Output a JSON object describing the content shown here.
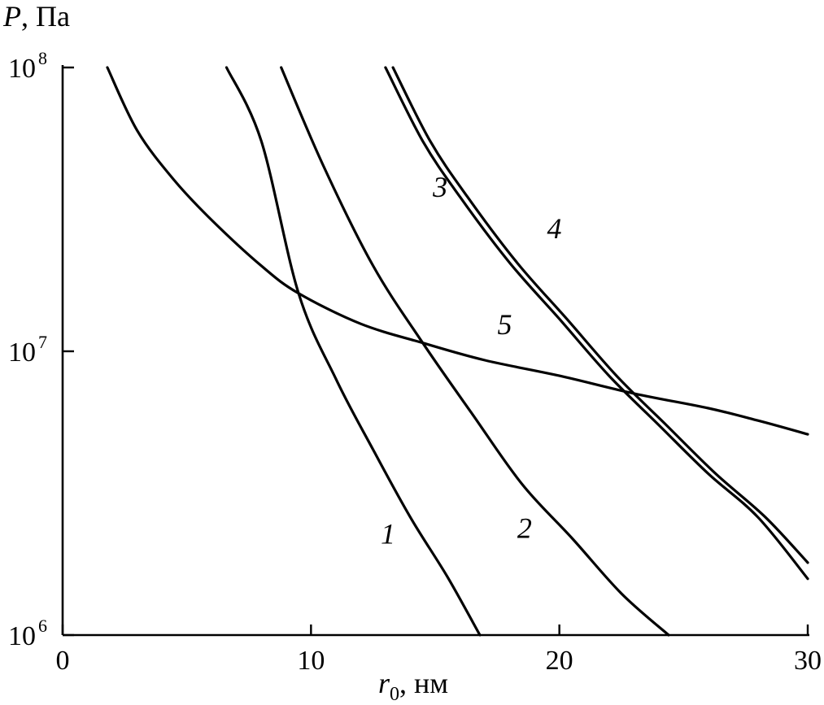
{
  "chart_data": {
    "type": "line",
    "x_axis": {
      "label_var": "r",
      "label_sub": "0",
      "label_unit": ", нм",
      "range": [
        0,
        30
      ],
      "ticks": [
        {
          "value": 0,
          "label": "0"
        },
        {
          "value": 10,
          "label": "10"
        },
        {
          "value": 20,
          "label": "20"
        },
        {
          "value": 30,
          "label": "30"
        }
      ]
    },
    "y_axis": {
      "label_var": "P",
      "label_unit": ", Па",
      "scale": "log",
      "range": [
        1000000,
        100000000
      ],
      "ticks": [
        {
          "value": 1000000,
          "base": "10",
          "exp": "6"
        },
        {
          "value": 10000000,
          "base": "10",
          "exp": "7"
        },
        {
          "value": 100000000,
          "base": "10",
          "exp": "8"
        }
      ]
    },
    "grid": false,
    "series": [
      {
        "label": "1",
        "label_at": [
          13.1,
          2100000
        ],
        "points": [
          [
            6.6,
            100000000
          ],
          [
            8,
            55000000
          ],
          [
            9.5,
            16000000
          ],
          [
            11,
            8000000
          ],
          [
            12.5,
            4500000
          ],
          [
            14,
            2600000
          ],
          [
            15.5,
            1600000
          ],
          [
            16.8,
            1000000
          ]
        ]
      },
      {
        "label": "2",
        "label_at": [
          18.6,
          2200000
        ],
        "points": [
          [
            8.8,
            100000000
          ],
          [
            10.5,
            45000000
          ],
          [
            12.5,
            20000000
          ],
          [
            14.5,
            10700000
          ],
          [
            16.5,
            6000000
          ],
          [
            18.5,
            3400000
          ],
          [
            20.5,
            2200000
          ],
          [
            22.5,
            1400000
          ],
          [
            24.4,
            1000000
          ]
        ]
      },
      {
        "label": "3",
        "label_at": [
          15.2,
          35000000
        ],
        "points": [
          [
            13.0,
            100000000
          ],
          [
            14.5,
            55000000
          ],
          [
            16,
            35000000
          ],
          [
            18,
            20500000
          ],
          [
            20,
            13000000
          ],
          [
            22,
            8200000
          ],
          [
            24,
            5500000
          ],
          [
            26,
            3700000
          ],
          [
            28,
            2600000
          ],
          [
            30,
            1580000
          ]
        ]
      },
      {
        "label": "4",
        "label_at": [
          19.8,
          25000000
        ],
        "points": [
          [
            13.3,
            100000000
          ],
          [
            14.8,
            55000000
          ],
          [
            16.3,
            35000000
          ],
          [
            18.3,
            20500000
          ],
          [
            20.3,
            13000000
          ],
          [
            22.3,
            8200000
          ],
          [
            24.3,
            5500000
          ],
          [
            26.3,
            3700000
          ],
          [
            28.3,
            2600000
          ],
          [
            30,
            1800000
          ]
        ]
      },
      {
        "label": "5",
        "label_at": [
          17.8,
          11500000
        ],
        "points": [
          [
            1.8,
            100000000
          ],
          [
            3,
            60000000
          ],
          [
            4.5,
            40000000
          ],
          [
            6,
            29000000
          ],
          [
            8,
            20000000
          ],
          [
            9.5,
            16000000
          ],
          [
            12,
            12500000
          ],
          [
            14.5,
            10700000
          ],
          [
            17,
            9300000
          ],
          [
            20,
            8200000
          ],
          [
            23,
            7100000
          ],
          [
            26,
            6300000
          ],
          [
            28,
            5700000
          ],
          [
            30,
            5100000
          ]
        ]
      }
    ]
  }
}
